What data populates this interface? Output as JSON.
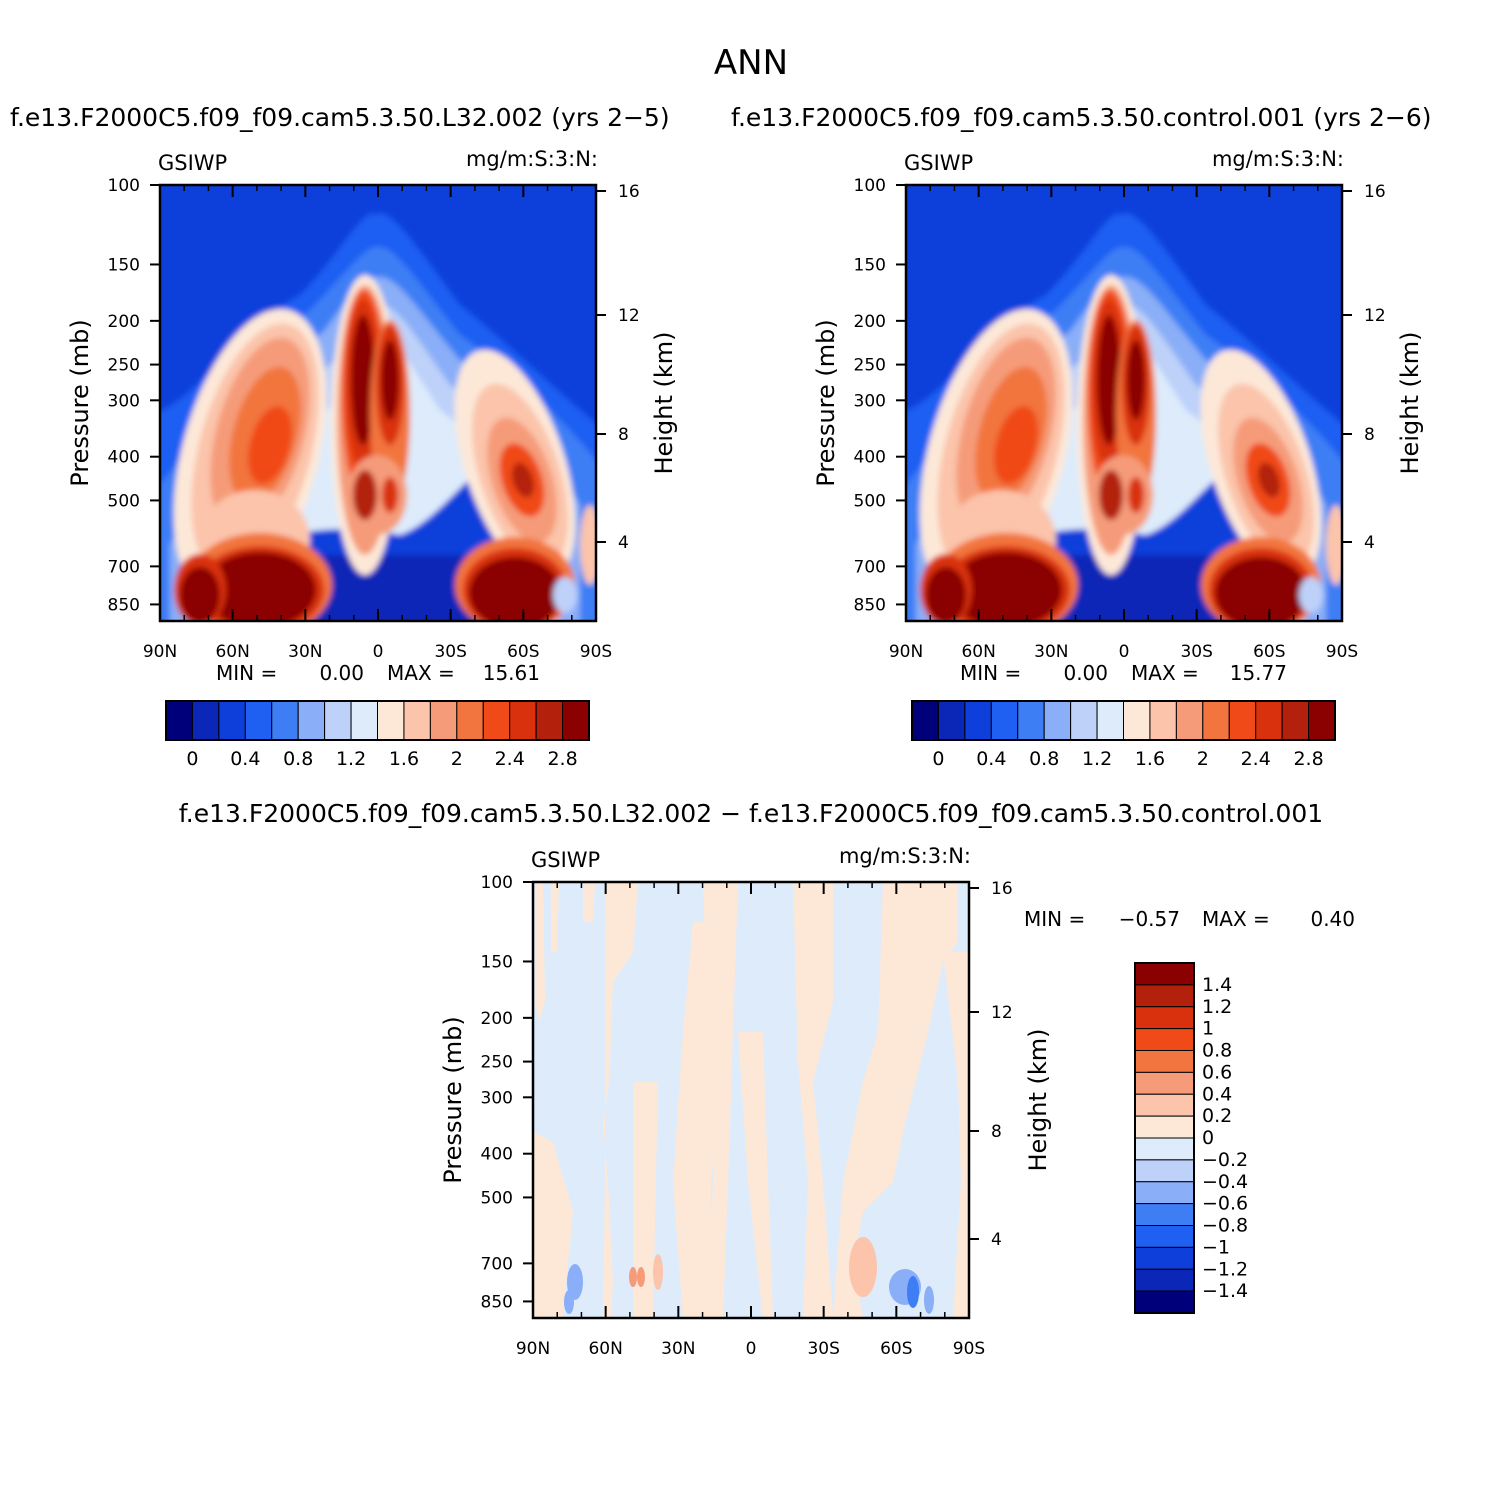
{
  "figure_title": "ANN",
  "palette": [
    "#00007a",
    "#0a27b7",
    "#0f3fdb",
    "#1f5ff2",
    "#3d7ef5",
    "#8aaef7",
    "#bdd1f9",
    "#ddebfb",
    "#fde8d8",
    "#fbc4ab",
    "#f59b79",
    "#f2743e",
    "#f04a18",
    "#d9300e",
    "#b3200b",
    "#8b0000"
  ],
  "chart_data": [
    {
      "id": "panel-1",
      "type": "heatmap",
      "title": "f.e13.F2000C5.f09_f09.cam5.3.50.L32.002  (yrs  2−5)",
      "left_label": "GSIWP",
      "right_label": "mg/m:S:3:N:",
      "xlabel": "",
      "ylabel": "Pressure  (mb)",
      "y2label": "Height  (km)",
      "x_ticks": [
        "90N",
        "60N",
        "30N",
        "0",
        "30S",
        "60S",
        "90S"
      ],
      "x_range": [
        90,
        -90
      ],
      "y_ticks": [
        "100",
        "150",
        "200",
        "250",
        "300",
        "400",
        "500",
        "700",
        "850"
      ],
      "y2_ticks": [
        "16",
        "12",
        "8",
        "4"
      ],
      "min_label": "MIN  =",
      "min_value": "0.00",
      "max_label": "MAX  =",
      "max_value": "15.61",
      "colorbar_labels": [
        "0",
        "0.4",
        "0.8",
        "1.2",
        "1.6",
        "2",
        "2.4",
        "2.8"
      ],
      "colorbar_values": [
        0,
        0.2,
        0.4,
        0.6,
        0.8,
        1.0,
        1.2,
        1.4,
        1.6,
        1.8,
        2.0,
        2.2,
        2.4,
        2.6,
        2.8
      ]
    },
    {
      "id": "panel-2",
      "type": "heatmap",
      "title": "f.e13.F2000C5.f09_f09.cam5.3.50.control.001  (yrs  2−6)",
      "left_label": "GSIWP",
      "right_label": "mg/m:S:3:N:",
      "xlabel": "",
      "ylabel": "Pressure  (mb)",
      "y2label": "Height  (km)",
      "x_ticks": [
        "90N",
        "60N",
        "30N",
        "0",
        "30S",
        "60S",
        "90S"
      ],
      "x_range": [
        90,
        -90
      ],
      "y_ticks": [
        "100",
        "150",
        "200",
        "250",
        "300",
        "400",
        "500",
        "700",
        "850"
      ],
      "y2_ticks": [
        "16",
        "12",
        "8",
        "4"
      ],
      "min_label": "MIN  =",
      "min_value": "0.00",
      "max_label": "MAX  =",
      "max_value": "15.77",
      "colorbar_labels": [
        "0",
        "0.4",
        "0.8",
        "1.2",
        "1.6",
        "2",
        "2.4",
        "2.8"
      ],
      "colorbar_values": [
        0,
        0.2,
        0.4,
        0.6,
        0.8,
        1.0,
        1.2,
        1.4,
        1.6,
        1.8,
        2.0,
        2.2,
        2.4,
        2.6,
        2.8
      ]
    },
    {
      "id": "panel-diff",
      "type": "heatmap",
      "title": "f.e13.F2000C5.f09_f09.cam5.3.50.L32.002  −  f.e13.F2000C5.f09_f09.cam5.3.50.control.001",
      "left_label": "GSIWP",
      "right_label": "mg/m:S:3:N:",
      "xlabel": "",
      "ylabel": "Pressure  (mb)",
      "y2label": "Height  (km)",
      "x_ticks": [
        "90N",
        "60N",
        "30N",
        "0",
        "30S",
        "60S",
        "90S"
      ],
      "x_range": [
        90,
        -90
      ],
      "y_ticks": [
        "100",
        "150",
        "200",
        "250",
        "300",
        "400",
        "500",
        "700",
        "850"
      ],
      "y2_ticks": [
        "16",
        "12",
        "8",
        "4"
      ],
      "min_label": "MIN  =",
      "min_value": "−0.57",
      "max_label": "MAX  =",
      "max_value": "0.40",
      "colorbar_labels": [
        "1.4",
        "1.2",
        "1",
        "0.8",
        "0.6",
        "0.4",
        "0.2",
        "0",
        "−0.2",
        "−0.4",
        "−0.6",
        "−0.8",
        "−1",
        "−1.2",
        "−1.4"
      ]
    }
  ]
}
